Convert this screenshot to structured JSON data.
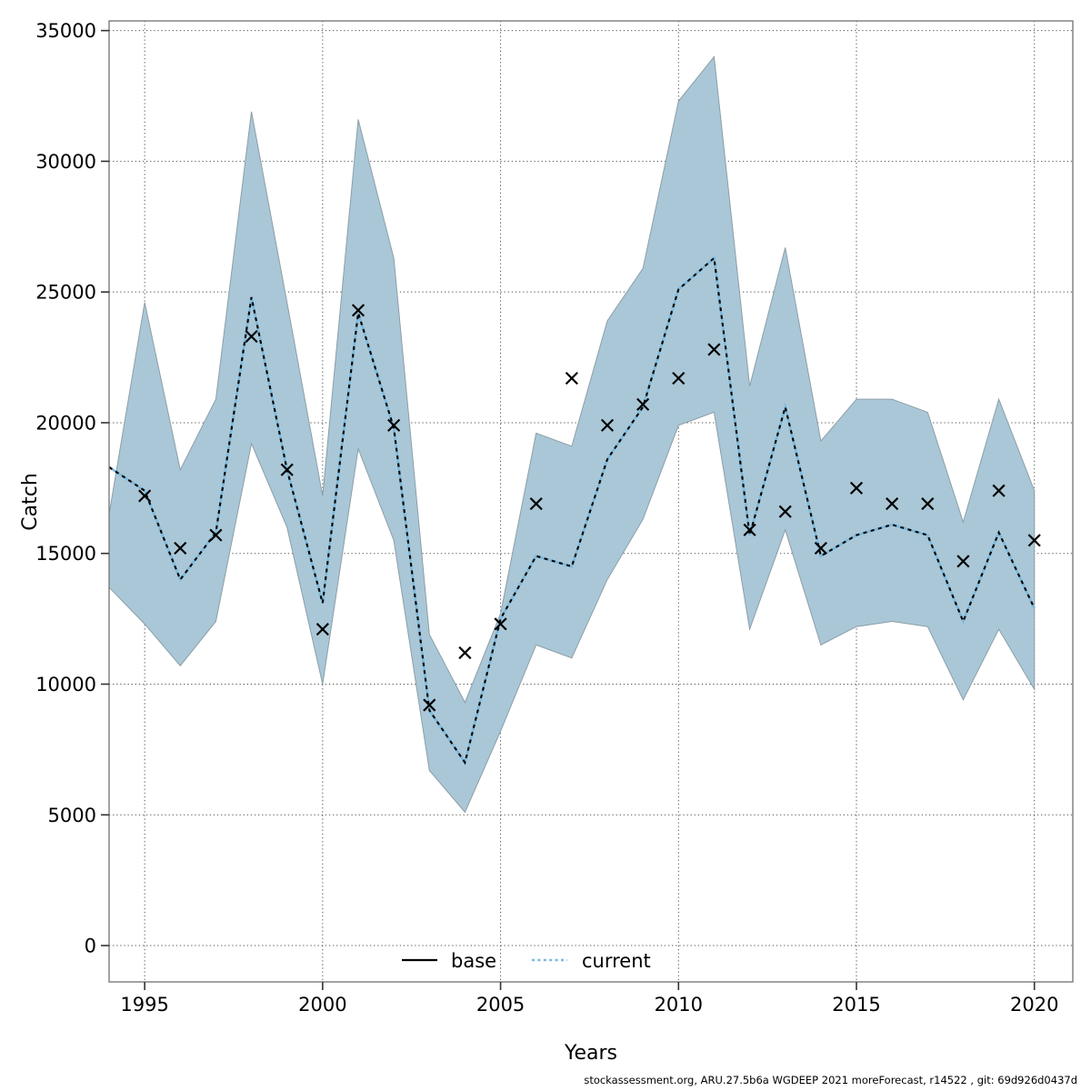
{
  "axes": {
    "x_title": "Years",
    "y_title": "Catch"
  },
  "legend": {
    "items": [
      {
        "label": "base",
        "style": "solid-black-line"
      },
      {
        "label": "current",
        "style": "dotted-blue-line"
      }
    ]
  },
  "footer": "stockassessment.org, ARU.27.5b6a WGDEEP 2021 moreForecast, r14522 , git: 69d926d0437d",
  "chart_data": {
    "type": "line",
    "title": "",
    "xlabel": "Years",
    "ylabel": "Catch",
    "x_ticks": [
      1995,
      2000,
      2005,
      2010,
      2015,
      2020
    ],
    "y_ticks": [
      0,
      5000,
      10000,
      15000,
      20000,
      25000,
      30000,
      35000
    ],
    "xlim": [
      1994,
      2021.08
    ],
    "ylim": [
      -1390,
      35370
    ],
    "grid": "dotted",
    "legend_position": "bottom-center-inside",
    "years": [
      1994,
      1995,
      1996,
      1997,
      1998,
      1999,
      2000,
      2001,
      2002,
      2003,
      2004,
      2005,
      2006,
      2007,
      2008,
      2009,
      2010,
      2011,
      2012,
      2013,
      2014,
      2015,
      2016,
      2017,
      2018,
      2019,
      2020
    ],
    "series": [
      {
        "name": "current estimate line",
        "type": "line",
        "values": [
          18300,
          17400,
          14000,
          15800,
          24800,
          18200,
          13100,
          24200,
          19800,
          9000,
          7000,
          12500,
          14900,
          14500,
          18600,
          20600,
          25100,
          26300,
          15700,
          20600,
          14900,
          15700,
          16100,
          15700,
          12400,
          15800,
          12900
        ]
      },
      {
        "name": "confidence band",
        "type": "band",
        "upper": [
          16500,
          24600,
          18200,
          20900,
          31900,
          24600,
          17200,
          31600,
          26300,
          11900,
          9300,
          12700,
          19600,
          19100,
          23900,
          25900,
          32300,
          34000,
          21400,
          26700,
          19300,
          20900,
          20900,
          20400,
          16200,
          20900,
          17400
        ],
        "lower": [
          13700,
          12300,
          10700,
          12400,
          19200,
          16000,
          10000,
          19000,
          15500,
          6700,
          5100,
          8200,
          11500,
          11000,
          14000,
          16300,
          19900,
          20400,
          12100,
          15900,
          11500,
          12200,
          12400,
          12200,
          9400,
          12100,
          9800
        ]
      },
      {
        "name": "observed catch markers",
        "type": "scatter-x",
        "x": [
          1995,
          1996,
          1997,
          1998,
          1999,
          2000,
          2001,
          2002,
          2003,
          2004,
          2005,
          2006,
          2007,
          2008,
          2009,
          2010,
          2011,
          2012,
          2013,
          2014,
          2015,
          2016,
          2017,
          2018,
          2019,
          2020
        ],
        "values": [
          17200,
          15200,
          15700,
          23300,
          18200,
          12100,
          24300,
          19900,
          9200,
          11200,
          12300,
          16900,
          21700,
          19900,
          20700,
          21700,
          22800,
          15900,
          16600,
          15200,
          17500,
          16900,
          16900,
          14700,
          17400,
          15500
        ]
      }
    ],
    "colors": {
      "band_fill": "#a9c7d7",
      "band_edge": "#8d9ea8",
      "line_black": "#000000",
      "line_blue": "#7cb9dd",
      "marker": "#000000",
      "grid": "#555555",
      "border": "#7a7a7a",
      "tick": "#333333",
      "text": "#000000",
      "background": "#ffffff"
    }
  }
}
